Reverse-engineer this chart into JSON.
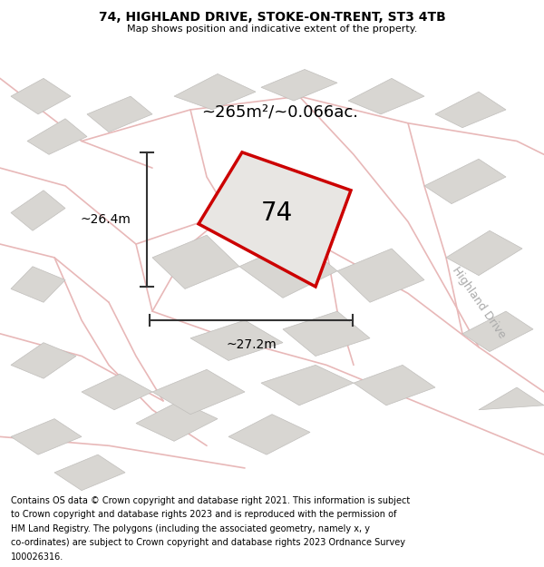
{
  "title": "74, HIGHLAND DRIVE, STOKE-ON-TRENT, ST3 4TB",
  "subtitle": "Map shows position and indicative extent of the property.",
  "area_label": "~265m²/~0.066ac.",
  "number_label": "74",
  "width_label": "~27.2m",
  "height_label": "~26.4m",
  "road_label": "Highland Drive",
  "footer_lines": [
    "Contains OS data © Crown copyright and database right 2021. This information is subject",
    "to Crown copyright and database rights 2023 and is reproduced with the permission of",
    "HM Land Registry. The polygons (including the associated geometry, namely x, y",
    "co-ordinates) are subject to Crown copyright and database rights 2023 Ordnance Survey",
    "100026316."
  ],
  "map_bg": "#f2f0ed",
  "highlight_edge": "#cc0000",
  "highlight_fill": "#e8e6e3",
  "building_color": "#d8d6d2",
  "building_edge": "#c0bebb",
  "road_color": "#e8b8b8",
  "title_fontsize": 10,
  "subtitle_fontsize": 8,
  "footer_fontsize": 7,
  "area_fontsize": 13,
  "number_fontsize": 20,
  "dim_fontsize": 10,
  "road_label_fontsize": 9
}
